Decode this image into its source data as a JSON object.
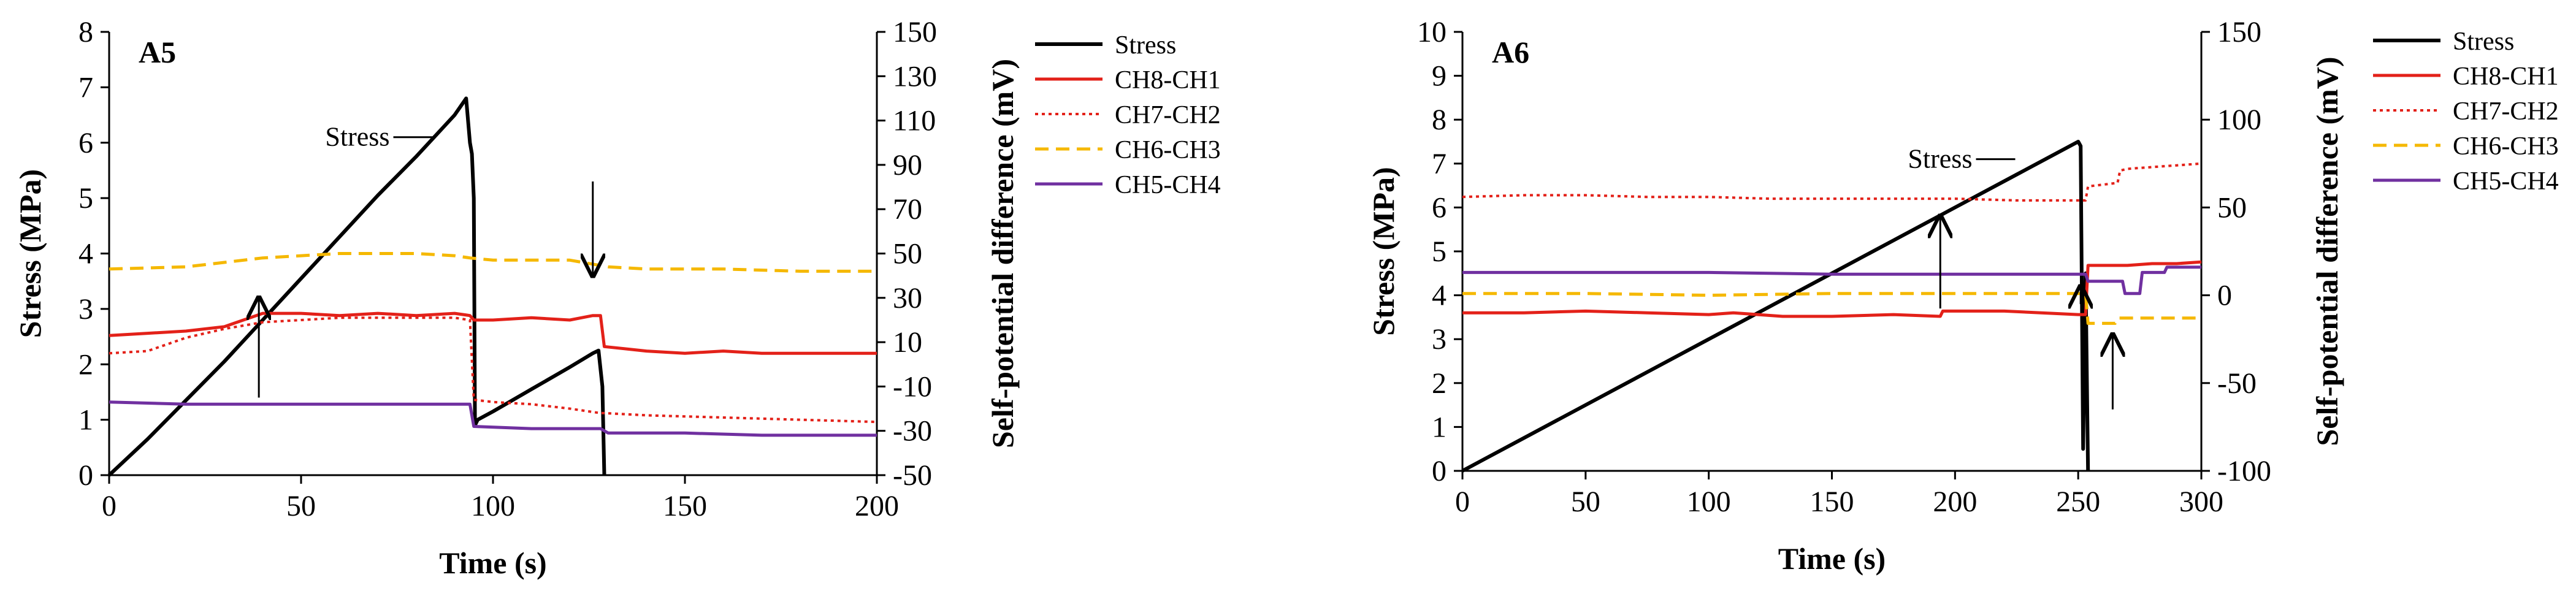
{
  "chart_data": [
    {
      "type": "line",
      "panel": "A5",
      "xlabel": "Time (s)",
      "ylabel": "Stress (MPa)",
      "y2label": "Self-potential difference (mV)",
      "xlim": [
        0,
        200
      ],
      "xticks": [
        0,
        50,
        100,
        150,
        200
      ],
      "ylim": [
        0,
        8
      ],
      "yticks": [
        0,
        1,
        2,
        3,
        4,
        5,
        6,
        7,
        8
      ],
      "y2lim": [
        -50,
        150
      ],
      "y2ticks": [
        -50,
        -30,
        -10,
        10,
        30,
        50,
        70,
        90,
        110,
        130,
        150
      ],
      "legend": [
        "Stress",
        "CH8-CH1",
        "CH7-CH2",
        "CH6-CH3",
        "CH5-CH4"
      ],
      "annotations": [
        {
          "text": "Stress",
          "x": 75,
          "y": 6.1
        }
      ],
      "arrows": [
        {
          "x": 39,
          "y_from": 1.4,
          "y_to": 3.2
        },
        {
          "x": 126,
          "y_from": 5.3,
          "y_to": 3.6
        }
      ],
      "series": [
        {
          "name": "Stress",
          "axis": "left",
          "color": "#000000",
          "dash": "",
          "width": 6,
          "x": [
            0,
            10,
            20,
            30,
            40,
            50,
            60,
            70,
            80,
            90,
            93,
            94,
            94.5,
            95,
            95.3,
            96,
            100,
            110,
            120,
            126,
            127.5,
            128.5,
            129
          ],
          "y": [
            0,
            0.65,
            1.35,
            2.05,
            2.8,
            3.55,
            4.3,
            5.05,
            5.75,
            6.5,
            6.8,
            6.0,
            5.8,
            5.0,
            0.9,
            1.0,
            1.15,
            1.55,
            1.95,
            2.2,
            2.25,
            1.6,
            0
          ]
        },
        {
          "name": "CH8-CH1",
          "axis": "right",
          "color": "#e32119",
          "dash": "",
          "width": 5,
          "x": [
            0,
            10,
            20,
            30,
            40,
            50,
            60,
            70,
            80,
            90,
            94,
            95,
            100,
            110,
            120,
            126,
            128,
            129,
            140,
            150,
            160,
            170,
            180,
            190,
            200
          ],
          "y": [
            13,
            14,
            15,
            17,
            23,
            23,
            22,
            23,
            22,
            23,
            22,
            20,
            20,
            21,
            20,
            22,
            22,
            8,
            6,
            5,
            6,
            5,
            5,
            5,
            5
          ]
        },
        {
          "name": "CH7-CH2",
          "axis": "right",
          "color": "#e32119",
          "dash": "5,6",
          "width": 4,
          "x": [
            0,
            10,
            20,
            30,
            40,
            50,
            60,
            70,
            80,
            90,
            94,
            95,
            100,
            110,
            120,
            128,
            129,
            140,
            160,
            180,
            200
          ],
          "y": [
            5,
            6,
            12,
            16,
            19,
            20,
            21,
            21,
            21,
            21,
            20,
            -16,
            -17,
            -18,
            -20,
            -22,
            -22,
            -23,
            -24,
            -25,
            -26
          ]
        },
        {
          "name": "CH6-CH3",
          "axis": "right",
          "color": "#f5b800",
          "dash": "22,12",
          "width": 5,
          "x": [
            0,
            20,
            30,
            40,
            50,
            60,
            70,
            80,
            90,
            94,
            100,
            110,
            120,
            130,
            140,
            160,
            180,
            200
          ],
          "y": [
            43,
            44,
            46,
            48,
            49,
            50,
            50,
            50,
            49,
            48,
            47,
            47,
            47,
            44,
            43,
            43,
            42,
            42
          ]
        },
        {
          "name": "CH5-CH4",
          "axis": "right",
          "color": "#7030a0",
          "dash": "",
          "width": 5,
          "x": [
            0,
            20,
            40,
            60,
            80,
            94,
            95,
            110,
            128,
            130,
            150,
            170,
            200
          ],
          "y": [
            -17,
            -18,
            -18,
            -18,
            -18,
            -18,
            -28,
            -29,
            -29,
            -31,
            -31,
            -32,
            -32
          ]
        }
      ]
    },
    {
      "type": "line",
      "panel": "A6",
      "xlabel": "Time (s)",
      "ylabel": "Stress (MPa)",
      "y2label": "Self-potential difference (mV)",
      "xlim": [
        0,
        300
      ],
      "xticks": [
        0,
        50,
        100,
        150,
        200,
        250,
        300
      ],
      "ylim": [
        0,
        10
      ],
      "yticks": [
        0,
        1,
        2,
        3,
        4,
        5,
        6,
        7,
        8,
        9,
        10
      ],
      "y2lim": [
        -100,
        150
      ],
      "y2ticks": [
        -100,
        -50,
        0,
        50,
        100,
        150
      ],
      "legend": [
        "Stress",
        "CH8-CH1",
        "CH7-CH2",
        "CH6-CH3",
        "CH5-CH4"
      ],
      "annotations": [
        {
          "text": "Stress",
          "x": 210,
          "y": 7.1
        }
      ],
      "arrows": [
        {
          "x": 194,
          "y_from": 3.7,
          "y_to": 5.8
        },
        {
          "x": 251,
          "y_from": 3.8,
          "y_to": 4.2
        },
        {
          "x": 264,
          "y_from": 1.4,
          "y_to": 3.1
        }
      ],
      "series": [
        {
          "name": "Stress",
          "axis": "left",
          "color": "#000000",
          "dash": "",
          "width": 6,
          "x": [
            0,
            25,
            50,
            75,
            100,
            125,
            150,
            175,
            200,
            225,
            250,
            251,
            252,
            253,
            254
          ],
          "y": [
            0,
            0.75,
            1.5,
            2.25,
            3.0,
            3.75,
            4.5,
            5.25,
            6.0,
            6.75,
            7.5,
            7.4,
            0.5,
            4.5,
            0
          ]
        },
        {
          "name": "CH8-CH1",
          "axis": "right",
          "color": "#e32119",
          "dash": "",
          "width": 5,
          "x": [
            0,
            25,
            50,
            75,
            100,
            110,
            130,
            150,
            175,
            194,
            195,
            220,
            250,
            253,
            254,
            260,
            270,
            280,
            290,
            300
          ],
          "y": [
            -10,
            -10,
            -9,
            -10,
            -11,
            -10,
            -12,
            -12,
            -11,
            -12,
            -9,
            -9,
            -11,
            -11,
            17,
            17,
            17,
            18,
            18,
            19
          ]
        },
        {
          "name": "CH7-CH2",
          "axis": "right",
          "color": "#e32119",
          "dash": "5,6",
          "width": 4,
          "x": [
            0,
            25,
            50,
            75,
            100,
            125,
            150,
            175,
            200,
            225,
            250,
            253,
            254,
            260,
            266,
            267,
            270,
            280,
            290,
            300
          ],
          "y": [
            56,
            57,
            57,
            56,
            56,
            55,
            55,
            55,
            55,
            54,
            54,
            54,
            62,
            63,
            64,
            71,
            72,
            73,
            74,
            75
          ]
        },
        {
          "name": "CH6-CH3",
          "axis": "right",
          "color": "#f5b800",
          "dash": "22,12",
          "width": 5,
          "x": [
            0,
            50,
            100,
            150,
            200,
            250,
            253,
            254,
            265,
            266,
            280,
            300
          ],
          "y": [
            1,
            1,
            0,
            1,
            1,
            1,
            1,
            -16,
            -16,
            -13,
            -13,
            -13
          ]
        },
        {
          "name": "CH5-CH4",
          "axis": "right",
          "color": "#7030a0",
          "dash": "",
          "width": 5,
          "x": [
            0,
            50,
            100,
            150,
            200,
            250,
            253,
            254,
            260,
            268,
            269,
            275,
            276,
            285,
            286,
            300
          ],
          "y": [
            13,
            13,
            13,
            12,
            12,
            12,
            12,
            8,
            8,
            8,
            1,
            1,
            13,
            13,
            16,
            16
          ]
        }
      ]
    }
  ]
}
